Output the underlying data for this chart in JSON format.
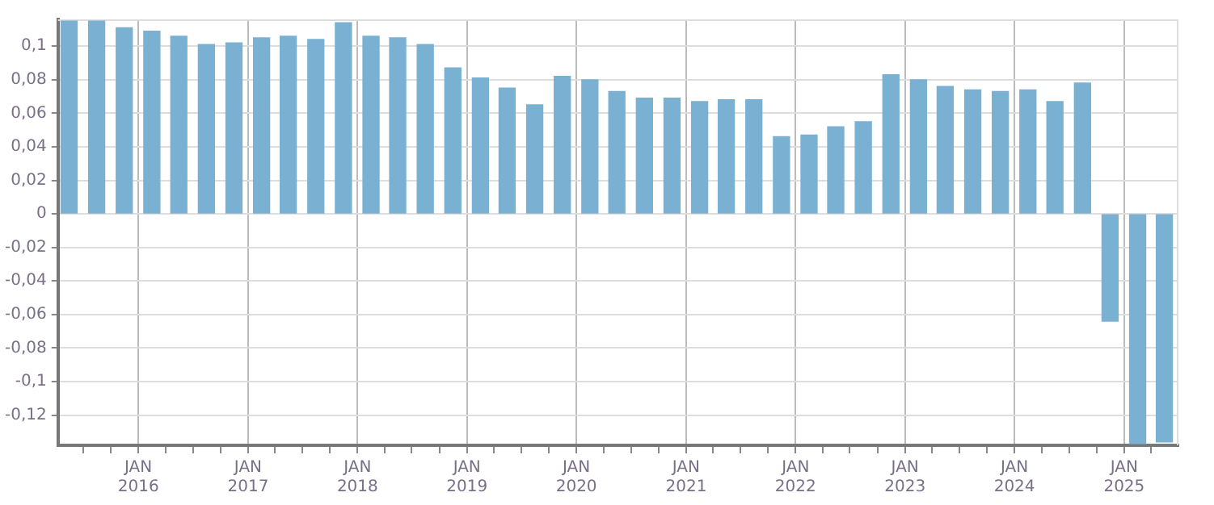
{
  "chart_data": {
    "type": "bar",
    "color": "#7ab1d3",
    "x": [
      "2015-05-15",
      "2015-08-15",
      "2015-11-15",
      "2016-02-15",
      "2016-05-15",
      "2016-08-15",
      "2016-11-15",
      "2017-02-15",
      "2017-05-15",
      "2017-08-15",
      "2017-11-15",
      "2018-02-15",
      "2018-05-15",
      "2018-08-15",
      "2018-11-15",
      "2019-02-15",
      "2019-05-15",
      "2019-08-15",
      "2019-11-15",
      "2020-02-15",
      "2020-05-15",
      "2020-08-15",
      "2020-11-15",
      "2021-02-15",
      "2021-05-15",
      "2021-08-15",
      "2021-11-15",
      "2022-02-15",
      "2022-05-15",
      "2022-08-15",
      "2022-11-15",
      "2023-02-15",
      "2023-05-15",
      "2023-08-15",
      "2023-11-15",
      "2024-02-15",
      "2024-05-15",
      "2024-08-15",
      "2024-11-15",
      "2025-02-15",
      "2025-05-15"
    ],
    "values": [
      0.115,
      0.115,
      0.111,
      0.109,
      0.106,
      0.101,
      0.102,
      0.105,
      0.106,
      0.104,
      0.114,
      0.106,
      0.105,
      0.101,
      0.087,
      0.081,
      0.075,
      0.065,
      0.082,
      0.08,
      0.073,
      0.069,
      0.069,
      0.067,
      0.068,
      0.068,
      0.046,
      0.047,
      0.052,
      0.055,
      0.083,
      0.08,
      0.076,
      0.074,
      0.073,
      0.074,
      0.067,
      0.078,
      -0.064,
      -0.137,
      -0.136
    ],
    "xlim": [
      "2015-04-08",
      "2025-07-01"
    ],
    "xticks": [
      {
        "value": "2015-07-01",
        "label": null
      },
      {
        "value": "2015-10-01",
        "label": null
      },
      {
        "value": "2016-01-01",
        "label": "JAN 2016"
      },
      {
        "value": "2016-04-01",
        "label": null
      },
      {
        "value": "2016-07-01",
        "label": null
      },
      {
        "value": "2016-10-01",
        "label": null
      },
      {
        "value": "2017-01-01",
        "label": "JAN 2017"
      },
      {
        "value": "2017-04-01",
        "label": null
      },
      {
        "value": "2017-07-01",
        "label": null
      },
      {
        "value": "2017-10-01",
        "label": null
      },
      {
        "value": "2018-01-01",
        "label": "JAN 2018"
      },
      {
        "value": "2018-04-01",
        "label": null
      },
      {
        "value": "2018-07-01",
        "label": null
      },
      {
        "value": "2018-10-01",
        "label": null
      },
      {
        "value": "2019-01-01",
        "label": "JAN 2019"
      },
      {
        "value": "2019-04-01",
        "label": null
      },
      {
        "value": "2019-07-01",
        "label": null
      },
      {
        "value": "2019-10-01",
        "label": null
      },
      {
        "value": "2020-01-01",
        "label": "JAN 2020"
      },
      {
        "value": "2020-04-01",
        "label": null
      },
      {
        "value": "2020-07-01",
        "label": null
      },
      {
        "value": "2020-10-01",
        "label": null
      },
      {
        "value": "2021-01-01",
        "label": "JAN 2021"
      },
      {
        "value": "2021-04-01",
        "label": null
      },
      {
        "value": "2021-07-01",
        "label": null
      },
      {
        "value": "2021-10-01",
        "label": null
      },
      {
        "value": "2022-01-01",
        "label": "JAN 2022"
      },
      {
        "value": "2022-04-01",
        "label": null
      },
      {
        "value": "2022-07-01",
        "label": null
      },
      {
        "value": "2022-10-01",
        "label": null
      },
      {
        "value": "2023-01-01",
        "label": "JAN 2023"
      },
      {
        "value": "2023-04-01",
        "label": null
      },
      {
        "value": "2023-07-01",
        "label": null
      },
      {
        "value": "2023-10-01",
        "label": null
      },
      {
        "value": "2024-01-01",
        "label": "JAN 2024"
      },
      {
        "value": "2024-04-01",
        "label": null
      },
      {
        "value": "2024-07-01",
        "label": null
      },
      {
        "value": "2024-10-01",
        "label": null
      },
      {
        "value": "2025-01-01",
        "label": "JAN 2025"
      },
      {
        "value": "2025-04-01",
        "label": null
      }
    ],
    "ylim": [
      -0.138,
      0.116
    ],
    "yticks": [
      {
        "value": -0.12,
        "label": "-0,12"
      },
      {
        "value": -0.1,
        "label": "-0,1"
      },
      {
        "value": -0.08,
        "label": "-0,08"
      },
      {
        "value": -0.06,
        "label": "-0,06"
      },
      {
        "value": -0.04,
        "label": "-0,04"
      },
      {
        "value": -0.02,
        "label": "-0,02"
      },
      {
        "value": 0,
        "label": "0"
      },
      {
        "value": 0.02,
        "label": "0,02"
      },
      {
        "value": 0.04,
        "label": "0,04"
      },
      {
        "value": 0.06,
        "label": "0,06"
      },
      {
        "value": 0.08,
        "label": "0,08"
      },
      {
        "value": 0.1,
        "label": "0,1"
      }
    ],
    "grid": true
  }
}
